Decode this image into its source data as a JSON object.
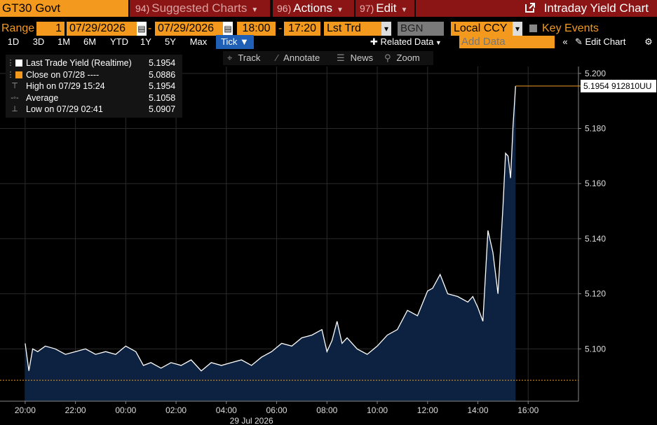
{
  "header": {
    "ticker": "GT30 Govt",
    "suggested_fn": "94)",
    "suggested_label": "Suggested Charts",
    "actions_fn": "96)",
    "actions_label": "Actions",
    "edit_fn": "97)",
    "edit_label": "Edit",
    "chart_title": "Intraday Yield Chart"
  },
  "controls": {
    "range_label": "Range",
    "range_value": "1",
    "start_date": "07/29/2026",
    "end_date": "07/29/2026",
    "start_time": "18:00",
    "end_time": "17:20",
    "field": "Lst Trd Yld",
    "source": "BGN",
    "currency": "Local CCY",
    "key_events_label": "Key Events",
    "dash": "-"
  },
  "ranges": [
    "1D",
    "3D",
    "1M",
    "6M",
    "YTD",
    "1Y",
    "5Y",
    "Max"
  ],
  "tick_label": "Tick",
  "related_data_label": "Related Data",
  "add_data_placeholder": "Add Data",
  "edit_chart_label": "Edit Chart",
  "toolbar": {
    "track": "Track",
    "annotate": "Annotate",
    "news": "News",
    "zoom": "Zoom"
  },
  "legend": [
    {
      "name": "Last Trade Yield (Realtime)",
      "value": "5.1954",
      "swatch": "#ffffff"
    },
    {
      "name": "Close on 07/28 ----",
      "value": "5.0886",
      "swatch": "#f39a1e"
    },
    {
      "name": "High on 07/29 15:24",
      "value": "5.1954"
    },
    {
      "name": "Average",
      "value": "5.1058"
    },
    {
      "name": "Low on 07/29 02:41",
      "value": "5.0907"
    }
  ],
  "colors": {
    "accent": "#f39a1e",
    "header_red": "#8b1414",
    "area_fill": "#0d2240",
    "line": "#ffffff"
  },
  "chart_data": {
    "type": "area",
    "x_unit": "hours",
    "x_labels": [
      "20:00",
      "22:00",
      "00:00",
      "02:00",
      "04:00",
      "06:00",
      "08:00",
      "10:00",
      "12:00",
      "14:00",
      "16:00"
    ],
    "x_ticks": [
      20,
      22,
      24,
      26,
      28,
      30,
      32,
      34,
      36,
      38,
      40
    ],
    "xlim": [
      19,
      42
    ],
    "date_label": "29 Jul 2026",
    "date_label_at": 29,
    "yticks": [
      "5.100",
      "5.120",
      "5.140",
      "5.160",
      "5.180",
      "5.200"
    ],
    "ylim": [
      5.081,
      5.2025
    ],
    "close_line": 5.0886,
    "last_value_label": "5.1954 912810UU",
    "last_value": 5.1954,
    "series": [
      {
        "name": "Last Trade Yield (Realtime)",
        "x": [
          20.0,
          20.15,
          20.3,
          20.5,
          20.8,
          21.2,
          21.6,
          22.0,
          22.4,
          22.8,
          23.2,
          23.6,
          24.0,
          24.4,
          24.7,
          25.0,
          25.4,
          25.8,
          26.2,
          26.6,
          27.0,
          27.4,
          27.8,
          28.2,
          28.6,
          29.0,
          29.4,
          29.8,
          30.2,
          30.6,
          31.0,
          31.4,
          31.8,
          32.0,
          32.2,
          32.4,
          32.6,
          32.8,
          33.2,
          33.6,
          34.0,
          34.4,
          34.8,
          35.2,
          35.6,
          36.0,
          36.2,
          36.5,
          36.8,
          37.2,
          37.6,
          37.8,
          38.0,
          38.2,
          38.4,
          38.6,
          38.8,
          39.0,
          39.1,
          39.2,
          39.3,
          39.4,
          39.5
        ],
        "y": [
          5.102,
          5.092,
          5.1,
          5.099,
          5.101,
          5.1,
          5.098,
          5.099,
          5.1,
          5.098,
          5.099,
          5.098,
          5.101,
          5.099,
          5.094,
          5.095,
          5.093,
          5.095,
          5.094,
          5.096,
          5.092,
          5.095,
          5.094,
          5.095,
          5.096,
          5.094,
          5.097,
          5.099,
          5.102,
          5.101,
          5.104,
          5.105,
          5.107,
          5.099,
          5.103,
          5.11,
          5.102,
          5.104,
          5.1,
          5.098,
          5.101,
          5.105,
          5.107,
          5.114,
          5.112,
          5.121,
          5.122,
          5.127,
          5.12,
          5.119,
          5.117,
          5.119,
          5.115,
          5.11,
          5.143,
          5.135,
          5.12,
          5.152,
          5.171,
          5.17,
          5.162,
          5.181,
          5.1954
        ]
      }
    ]
  }
}
